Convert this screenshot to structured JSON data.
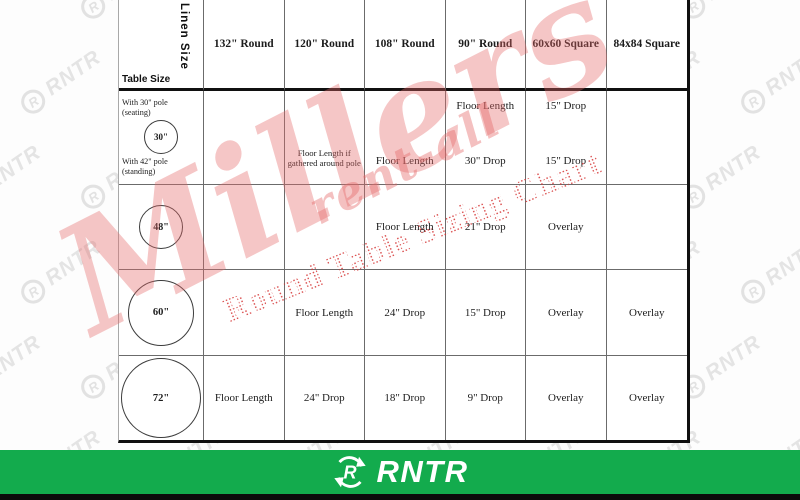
{
  "header": {
    "linen_size_label": "Linen Size",
    "table_size_label": "Table Size",
    "columns": [
      "132\" Round",
      "120\" Round",
      "108\" Round",
      "90\" Round",
      "60x60 Square",
      "84x84 Square"
    ]
  },
  "rows": [
    {
      "table_size": "30\"",
      "note_top": "With 30\" pole (seating)",
      "note_bottom": "With 42\" pole (standing)",
      "cells": [
        {
          "top": "",
          "bottom": ""
        },
        {
          "top": "",
          "bottom": "Floor Length if gathered around pole"
        },
        {
          "top": "",
          "bottom": "Floor Length"
        },
        {
          "top": "Floor Length",
          "bottom": "30\" Drop"
        },
        {
          "top": "15\" Drop",
          "bottom": "15\" Drop"
        },
        {
          "top": "",
          "bottom": ""
        }
      ]
    },
    {
      "table_size": "48\"",
      "cells": [
        "",
        "",
        "Floor Length",
        "21\" Drop",
        "Overlay",
        ""
      ]
    },
    {
      "table_size": "60\"",
      "cells": [
        "",
        "Floor Length",
        "24\" Drop",
        "15\" Drop",
        "Overlay",
        "Overlay"
      ]
    },
    {
      "table_size": "72\"",
      "cells": [
        "Floor Length",
        "24\" Drop",
        "18\" Drop",
        "9\" Drop",
        "Overlay",
        "Overlay"
      ]
    }
  ],
  "watermarks": {
    "brand_script": "Millers",
    "brand_sub": "rent-all",
    "chart_title": "Round Table Sizing Chart",
    "tile_logo_letter": "R",
    "tile_text": "RNTR",
    "pink_color": "#e56969",
    "dotted_red_color": "#d53434",
    "gray_color": "#e4e4e4"
  },
  "footer": {
    "logo_letter": "R",
    "logo_text": "RNTR",
    "bar_color": "#13ab4d"
  }
}
